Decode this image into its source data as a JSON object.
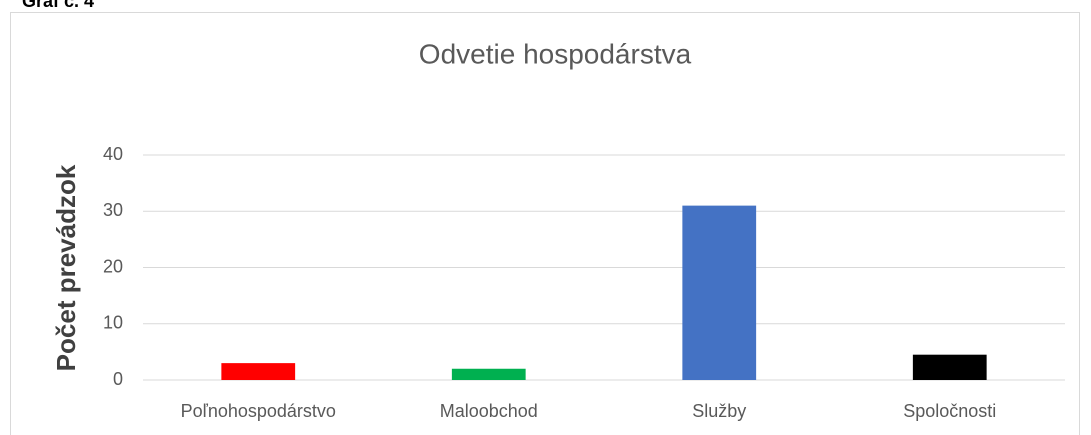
{
  "caption": "Graf č. 4",
  "chart_data": {
    "type": "bar",
    "title": "Odvetie hospodárstva",
    "ylabel": "Počet prevádzok",
    "categories": [
      "Poľnohospodárstvo",
      "Maloobchod",
      "Služby",
      "Spoločnosti"
    ],
    "values": [
      3,
      2,
      31,
      4.5
    ],
    "colors": [
      "#ff0000",
      "#00b050",
      "#4472c4",
      "#000000"
    ],
    "ylim": [
      0,
      40
    ],
    "yticks": [
      0,
      10,
      20,
      30,
      40
    ],
    "grid": true
  }
}
